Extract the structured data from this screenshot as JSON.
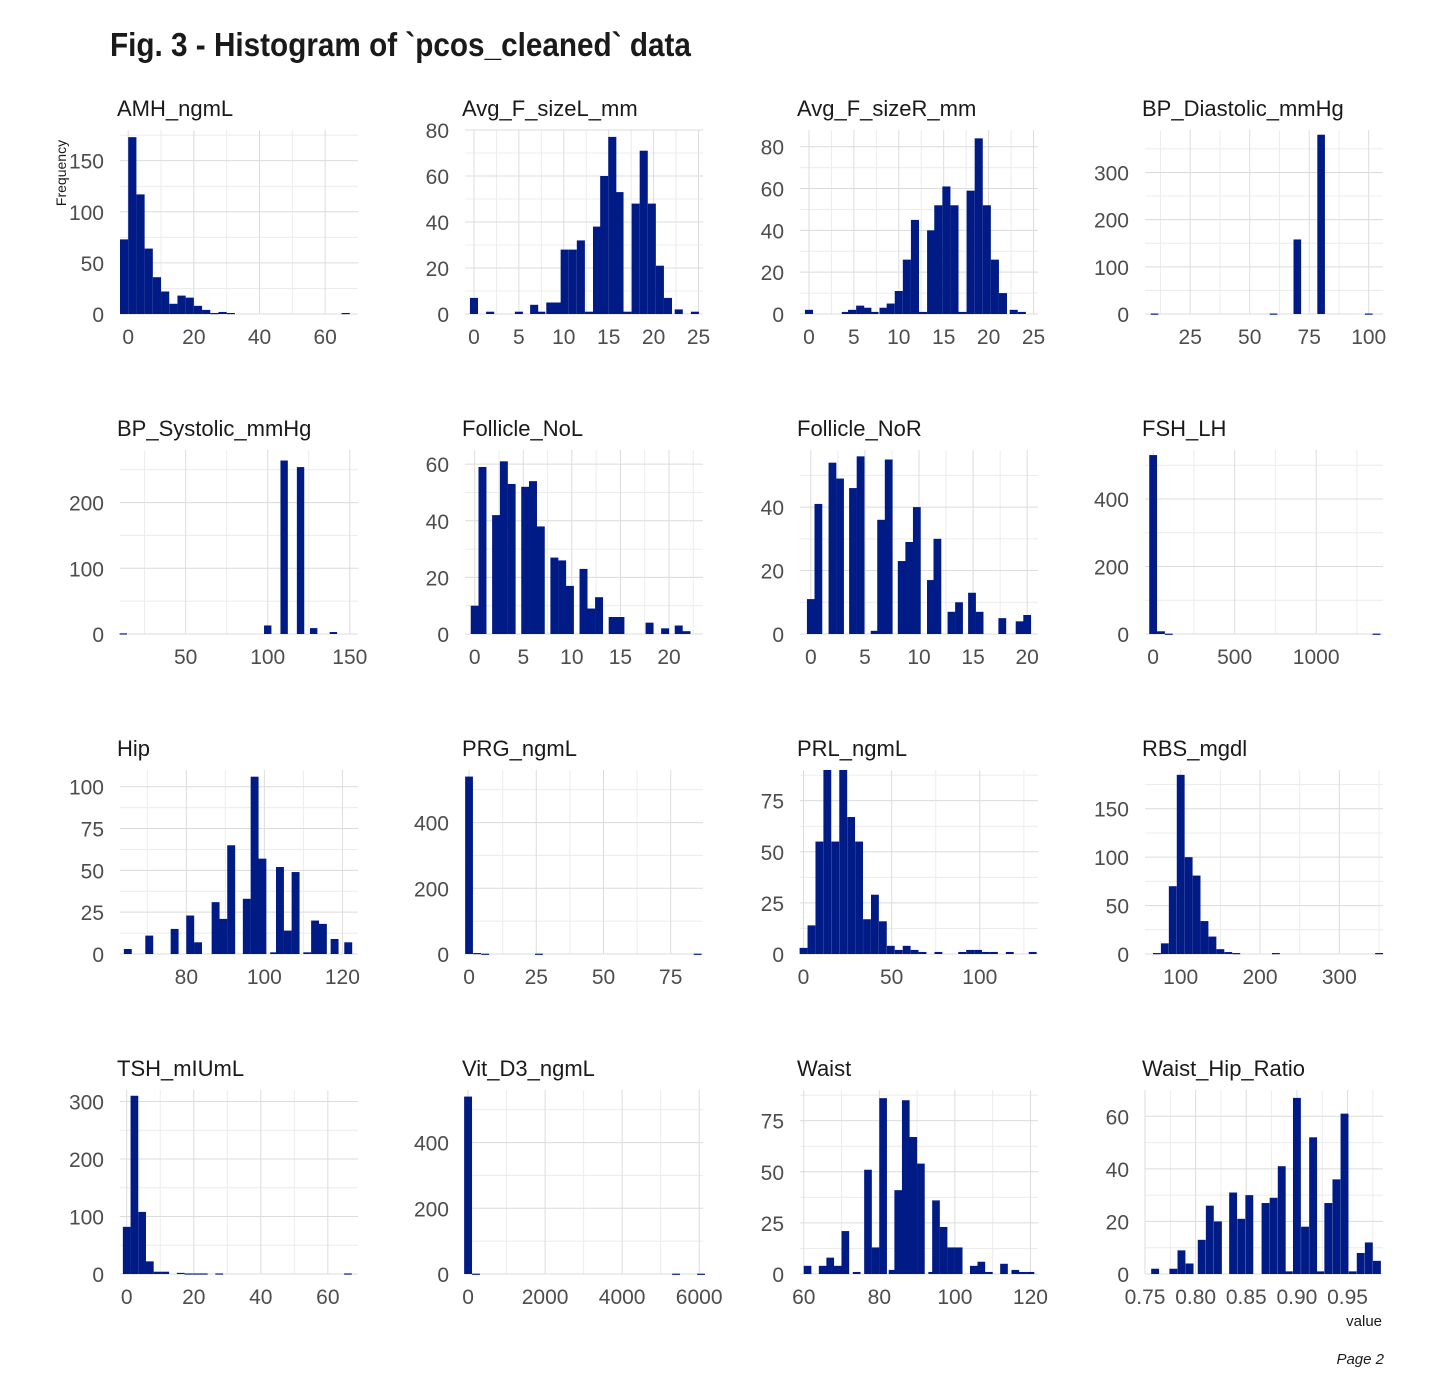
{
  "figure": {
    "title": "Fig. 3 - Histogram of `pcos_cleaned` data",
    "y_label": "Frequency",
    "x_label": "value",
    "page": "Page 2",
    "bar_color": "#001B85",
    "grid_color": "#dcdcdc"
  },
  "chart_data": [
    {
      "type": "bar",
      "title": "AMH_ngmL",
      "xlim": [
        -2.5,
        70
      ],
      "ylim": [
        0,
        180
      ],
      "xticks": [
        0,
        20,
        40,
        60
      ],
      "yticks": [
        0,
        50,
        100,
        150
      ],
      "bin_width": 2.5,
      "bins": [
        [
          -1.25,
          73
        ],
        [
          1.25,
          173
        ],
        [
          3.75,
          117
        ],
        [
          6.25,
          64
        ],
        [
          8.75,
          36
        ],
        [
          11.25,
          22
        ],
        [
          13.75,
          10
        ],
        [
          16.25,
          18
        ],
        [
          18.75,
          16
        ],
        [
          21.25,
          8
        ],
        [
          23.75,
          4
        ],
        [
          26.25,
          1
        ],
        [
          28.75,
          2
        ],
        [
          31.25,
          1
        ],
        [
          66.25,
          1
        ]
      ]
    },
    {
      "type": "bar",
      "title": "Avg_F_sizeL_mm",
      "xlim": [
        -1,
        25.5
      ],
      "ylim": [
        0,
        80
      ],
      "xticks": [
        0,
        5,
        10,
        15,
        20,
        25
      ],
      "yticks": [
        0,
        20,
        40,
        60,
        80
      ],
      "bin_width": 0.9,
      "bins": [
        [
          0,
          7
        ],
        [
          1.8,
          1
        ],
        [
          5,
          1
        ],
        [
          6.7,
          4
        ],
        [
          7.5,
          1
        ],
        [
          8.5,
          5
        ],
        [
          9.3,
          5
        ],
        [
          10.1,
          28
        ],
        [
          11,
          28
        ],
        [
          11.9,
          32
        ],
        [
          12.8,
          1
        ],
        [
          13.7,
          38
        ],
        [
          14.5,
          60
        ],
        [
          15.4,
          77
        ],
        [
          16.2,
          53
        ],
        [
          17.1,
          1
        ],
        [
          18,
          48
        ],
        [
          18.9,
          71
        ],
        [
          19.8,
          48
        ],
        [
          20.7,
          21
        ],
        [
          21.6,
          7
        ],
        [
          22.8,
          2
        ],
        [
          24.6,
          1
        ]
      ]
    },
    {
      "type": "bar",
      "title": "Avg_F_sizeR_mm",
      "xlim": [
        -1,
        25.5
      ],
      "ylim": [
        0,
        88
      ],
      "xticks": [
        0,
        5,
        10,
        15,
        20,
        25
      ],
      "yticks": [
        0,
        20,
        40,
        60,
        80
      ],
      "bin_width": 0.9,
      "bins": [
        [
          0,
          2
        ],
        [
          4.1,
          1
        ],
        [
          4.8,
          2
        ],
        [
          5.7,
          4
        ],
        [
          6.5,
          3
        ],
        [
          7.3,
          1
        ],
        [
          8.3,
          3
        ],
        [
          9.1,
          5
        ],
        [
          10,
          11
        ],
        [
          10.9,
          26
        ],
        [
          11.8,
          45
        ],
        [
          12.7,
          1
        ],
        [
          13.6,
          40
        ],
        [
          14.4,
          52
        ],
        [
          15.3,
          61
        ],
        [
          16.2,
          52
        ],
        [
          17.1,
          1
        ],
        [
          18,
          59
        ],
        [
          18.9,
          84
        ],
        [
          19.8,
          52
        ],
        [
          20.7,
          26
        ],
        [
          21.6,
          10
        ],
        [
          22.8,
          2
        ],
        [
          23.7,
          1
        ]
      ]
    },
    {
      "type": "bar",
      "title": "BP_Diastolic_mmHg",
      "xlim": [
        6,
        106
      ],
      "ylim": [
        0,
        390
      ],
      "xticks": [
        25,
        50,
        75,
        100
      ],
      "yticks": [
        0,
        100,
        200,
        300
      ],
      "bin_width": 3.2,
      "bins": [
        [
          10,
          1
        ],
        [
          60,
          1
        ],
        [
          70,
          158
        ],
        [
          80,
          380
        ],
        [
          100,
          1
        ]
      ]
    },
    {
      "type": "bar",
      "title": "BP_Systolic_mmHg",
      "xlim": [
        10,
        155
      ],
      "ylim": [
        0,
        280
      ],
      "xticks": [
        50,
        100,
        150
      ],
      "yticks": [
        0,
        100,
        200
      ],
      "bin_width": 4.5,
      "bins": [
        [
          12,
          1
        ],
        [
          100,
          13
        ],
        [
          110,
          264
        ],
        [
          120,
          254
        ],
        [
          128,
          9
        ],
        [
          140,
          3
        ]
      ]
    },
    {
      "type": "bar",
      "title": "Follicle_NoL",
      "xlim": [
        -1,
        23.5
      ],
      "ylim": [
        0,
        65
      ],
      "xticks": [
        0,
        5,
        10,
        15,
        20
      ],
      "yticks": [
        0,
        20,
        40,
        60
      ],
      "bin_width": 0.82,
      "bins": [
        [
          0,
          10
        ],
        [
          0.8,
          59
        ],
        [
          2.2,
          42
        ],
        [
          3,
          61
        ],
        [
          3.8,
          53
        ],
        [
          5.2,
          52
        ],
        [
          6,
          54
        ],
        [
          6.8,
          38
        ],
        [
          8.2,
          27
        ],
        [
          9,
          26
        ],
        [
          9.8,
          17
        ],
        [
          11.2,
          23
        ],
        [
          12,
          9
        ],
        [
          12.8,
          13
        ],
        [
          14.2,
          6
        ],
        [
          15,
          6
        ],
        [
          18,
          4
        ],
        [
          19.6,
          2
        ],
        [
          21,
          3
        ],
        [
          21.8,
          1
        ]
      ]
    },
    {
      "type": "bar",
      "title": "Follicle_NoR",
      "xlim": [
        -1,
        21
      ],
      "ylim": [
        0,
        58
      ],
      "xticks": [
        0,
        5,
        10,
        15,
        20
      ],
      "yticks": [
        0,
        20,
        40
      ],
      "bin_width": 0.72,
      "bins": [
        [
          0,
          11
        ],
        [
          0.7,
          41
        ],
        [
          2,
          54
        ],
        [
          2.7,
          49
        ],
        [
          3.9,
          46
        ],
        [
          4.6,
          56
        ],
        [
          5.9,
          1
        ],
        [
          6.5,
          36
        ],
        [
          7.2,
          55
        ],
        [
          8.4,
          23
        ],
        [
          9.1,
          29
        ],
        [
          9.8,
          40
        ],
        [
          11.1,
          17
        ],
        [
          11.7,
          30
        ],
        [
          13,
          7
        ],
        [
          13.7,
          10
        ],
        [
          14.9,
          13
        ],
        [
          15.6,
          7
        ],
        [
          17.7,
          5
        ],
        [
          19.3,
          4
        ],
        [
          20,
          6
        ]
      ]
    },
    {
      "type": "bar",
      "title": "FSH_LH",
      "xlim": [
        -50,
        1410
      ],
      "ylim": [
        0,
        545
      ],
      "xticks": [
        0,
        500,
        1000
      ],
      "yticks": [
        0,
        200,
        400
      ],
      "bin_width": 48,
      "bins": [
        [
          0,
          530
        ],
        [
          48,
          8
        ],
        [
          96,
          1
        ],
        [
          1370,
          1
        ]
      ]
    },
    {
      "type": "bar",
      "title": "Hip",
      "xlim": [
        63,
        124
      ],
      "ylim": [
        0,
        110
      ],
      "xticks": [
        80,
        100,
        120
      ],
      "yticks": [
        0,
        25,
        50,
        75,
        100
      ],
      "bin_width": 2.03,
      "bins": [
        [
          65,
          3
        ],
        [
          70.5,
          11
        ],
        [
          77,
          15
        ],
        [
          81,
          23
        ],
        [
          83,
          7
        ],
        [
          87.5,
          31
        ],
        [
          89.5,
          21
        ],
        [
          91.5,
          65
        ],
        [
          95.5,
          33
        ],
        [
          97.5,
          106
        ],
        [
          99.5,
          57
        ],
        [
          102.5,
          1
        ],
        [
          104,
          52
        ],
        [
          106,
          14
        ],
        [
          108,
          49
        ],
        [
          111,
          1
        ],
        [
          113,
          20
        ],
        [
          115,
          18
        ],
        [
          118,
          9
        ],
        [
          121.5,
          7
        ]
      ]
    },
    {
      "type": "bar",
      "title": "PRG_ngmL",
      "xlim": [
        -1.5,
        87
      ],
      "ylim": [
        0,
        560
      ],
      "xticks": [
        0,
        25,
        50,
        75
      ],
      "yticks": [
        0,
        200,
        400
      ],
      "bin_width": 2.9,
      "bins": [
        [
          0,
          540
        ],
        [
          3,
          3
        ],
        [
          6,
          1
        ],
        [
          26,
          1
        ],
        [
          85,
          1
        ]
      ]
    },
    {
      "type": "bar",
      "title": "PRL_ngmL",
      "xlim": [
        -2,
        133
      ],
      "ylim": [
        0,
        90
      ],
      "xticks": [
        0,
        50,
        100
      ],
      "yticks": [
        0,
        25,
        50,
        75
      ],
      "bin_width": 4.45,
      "bins": [
        [
          0,
          3
        ],
        [
          4.5,
          14
        ],
        [
          9,
          55
        ],
        [
          13.5,
          90
        ],
        [
          18,
          55
        ],
        [
          22.5,
          90
        ],
        [
          27,
          67
        ],
        [
          31.5,
          55
        ],
        [
          36,
          17
        ],
        [
          40.5,
          29
        ],
        [
          45,
          16
        ],
        [
          49.5,
          4
        ],
        [
          54,
          2
        ],
        [
          58.5,
          4
        ],
        [
          63,
          2
        ],
        [
          67.5,
          1
        ],
        [
          76.5,
          1
        ],
        [
          90,
          1
        ],
        [
          94.5,
          2
        ],
        [
          99,
          2
        ],
        [
          103.5,
          1
        ],
        [
          108,
          1
        ],
        [
          117,
          1
        ],
        [
          130,
          1
        ]
      ]
    },
    {
      "type": "bar",
      "title": "RBS_mgdl",
      "xlim": [
        55,
        355
      ],
      "ylim": [
        0,
        190
      ],
      "xticks": [
        100,
        200,
        300
      ],
      "yticks": [
        0,
        50,
        100,
        150
      ],
      "bin_width": 9.9,
      "bins": [
        [
          70,
          1
        ],
        [
          80,
          11
        ],
        [
          90,
          70
        ],
        [
          100,
          185
        ],
        [
          110,
          100
        ],
        [
          120,
          81
        ],
        [
          130,
          34
        ],
        [
          140,
          18
        ],
        [
          150,
          5
        ],
        [
          160,
          2
        ],
        [
          170,
          1
        ],
        [
          220,
          1
        ],
        [
          350,
          1
        ]
      ]
    },
    {
      "type": "bar",
      "title": "TSH_mIUmL",
      "xlim": [
        -2,
        69
      ],
      "ylim": [
        0,
        320
      ],
      "xticks": [
        0,
        20,
        40,
        60
      ],
      "yticks": [
        0,
        100,
        200,
        300
      ],
      "bin_width": 2.3,
      "bins": [
        [
          0,
          82
        ],
        [
          2.3,
          310
        ],
        [
          4.6,
          108
        ],
        [
          6.9,
          22
        ],
        [
          9.2,
          4
        ],
        [
          11.5,
          4
        ],
        [
          16.1,
          2
        ],
        [
          18.4,
          1
        ],
        [
          20.7,
          1
        ],
        [
          23,
          1
        ],
        [
          27.6,
          1
        ],
        [
          66,
          1
        ]
      ]
    },
    {
      "type": "bar",
      "title": "Vit_D3_ngmL",
      "xlim": [
        -80,
        6100
      ],
      "ylim": [
        0,
        560
      ],
      "xticks": [
        0,
        2000,
        4000,
        6000
      ],
      "yticks": [
        0,
        200,
        400
      ],
      "bin_width": 205,
      "bins": [
        [
          0,
          540
        ],
        [
          205,
          1
        ],
        [
          5400,
          1
        ],
        [
          6050,
          1
        ]
      ]
    },
    {
      "type": "bar",
      "title": "Waist",
      "xlim": [
        59,
        122
      ],
      "ylim": [
        0,
        90
      ],
      "xticks": [
        60,
        80,
        100,
        120
      ],
      "yticks": [
        0,
        25,
        50,
        75
      ],
      "bin_width": 2.03,
      "bins": [
        [
          61,
          4
        ],
        [
          65,
          4
        ],
        [
          67,
          8
        ],
        [
          69,
          4
        ],
        [
          71,
          21
        ],
        [
          74,
          1
        ],
        [
          77,
          51
        ],
        [
          79,
          13
        ],
        [
          81,
          86
        ],
        [
          83.5,
          2
        ],
        [
          85,
          41
        ],
        [
          87,
          85
        ],
        [
          89,
          67
        ],
        [
          91,
          54
        ],
        [
          94,
          1
        ],
        [
          95,
          36
        ],
        [
          97,
          23
        ],
        [
          99,
          13
        ],
        [
          101,
          13
        ],
        [
          105,
          4
        ],
        [
          107,
          6
        ],
        [
          109,
          1
        ],
        [
          113,
          5
        ],
        [
          116,
          2
        ],
        [
          118,
          1
        ],
        [
          120,
          1
        ]
      ]
    },
    {
      "type": "bar",
      "title": "Waist_Hip_Ratio",
      "xlim": [
        0.75,
        0.985
      ],
      "ylim": [
        0,
        70
      ],
      "xticks": [
        0.75,
        0.8,
        0.85,
        0.9,
        0.95
      ],
      "yticks": [
        0,
        20,
        40,
        60
      ],
      "bin_width": 0.0078,
      "bins": [
        [
          0.76,
          2
        ],
        [
          0.778,
          2
        ],
        [
          0.786,
          9
        ],
        [
          0.794,
          4
        ],
        [
          0.806,
          13
        ],
        [
          0.814,
          26
        ],
        [
          0.822,
          20
        ],
        [
          0.837,
          31
        ],
        [
          0.845,
          21
        ],
        [
          0.853,
          30
        ],
        [
          0.869,
          27
        ],
        [
          0.877,
          29
        ],
        [
          0.885,
          41
        ],
        [
          0.892,
          1
        ],
        [
          0.9,
          67
        ],
        [
          0.908,
          18
        ],
        [
          0.916,
          52
        ],
        [
          0.923,
          1
        ],
        [
          0.931,
          27
        ],
        [
          0.939,
          36
        ],
        [
          0.947,
          61
        ],
        [
          0.955,
          1
        ],
        [
          0.963,
          8
        ],
        [
          0.971,
          12
        ],
        [
          0.979,
          5
        ]
      ]
    }
  ]
}
